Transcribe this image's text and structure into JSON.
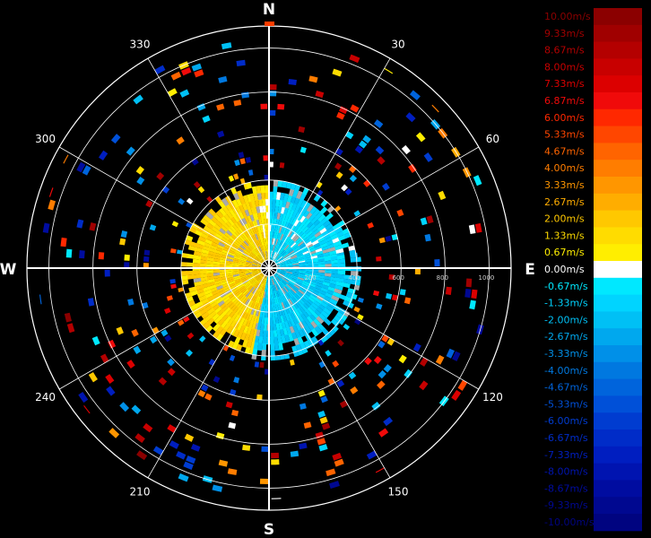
{
  "chart_data": {
    "type": "heatmap",
    "projection": "polar",
    "cardinal_labels": {
      "N": "N",
      "E": "E",
      "S": "S",
      "W": "W"
    },
    "azimuth_labels": [
      "30",
      "60",
      "120",
      "150",
      "210",
      "240",
      "300",
      "330"
    ],
    "azimuth_angles": [
      30,
      60,
      120,
      150,
      210,
      240,
      300,
      330
    ],
    "range_ring_labels": [
      "200",
      "400",
      "600",
      "800",
      "1000"
    ],
    "range_max": 1100,
    "grid": true,
    "colorbar": {
      "placement": "right",
      "entries": [
        {
          "label": "10.00m/s",
          "value": 10.0,
          "color": "#8b0000"
        },
        {
          "label": "9.33m/s",
          "value": 9.33,
          "color": "#a00000"
        },
        {
          "label": "8.67m/s",
          "value": 8.67,
          "color": "#b40000"
        },
        {
          "label": "8.00m/s",
          "value": 8.0,
          "color": "#c80000"
        },
        {
          "label": "7.33m/s",
          "value": 7.33,
          "color": "#dc0000"
        },
        {
          "label": "6.87m/s",
          "value": 6.87,
          "color": "#f00a0a"
        },
        {
          "label": "6.00m/s",
          "value": 6.0,
          "color": "#ff2800"
        },
        {
          "label": "5.33m/s",
          "value": 5.33,
          "color": "#ff4600"
        },
        {
          "label": "4.67m/s",
          "value": 4.67,
          "color": "#ff6400"
        },
        {
          "label": "4.00m/s",
          "value": 4.0,
          "color": "#ff7d00"
        },
        {
          "label": "3.33m/s",
          "value": 3.33,
          "color": "#ff9600"
        },
        {
          "label": "2.67m/s",
          "value": 2.67,
          "color": "#ffad00"
        },
        {
          "label": "2.00m/s",
          "value": 2.0,
          "color": "#ffc800"
        },
        {
          "label": "1.33m/s",
          "value": 1.33,
          "color": "#ffdc00"
        },
        {
          "label": "0.67m/s",
          "value": 0.67,
          "color": "#ffee00"
        },
        {
          "label": "0.00m/s",
          "value": 0.0,
          "color": "#ffffff"
        },
        {
          "label": "-0.67m/s",
          "value": -0.67,
          "color": "#00e8ff"
        },
        {
          "label": "-1.33m/s",
          "value": -1.33,
          "color": "#00d4ff"
        },
        {
          "label": "-2.00m/s",
          "value": -2.0,
          "color": "#00c0f5"
        },
        {
          "label": "-2.67m/s",
          "value": -2.67,
          "color": "#00a8ee"
        },
        {
          "label": "-3.33m/s",
          "value": -3.33,
          "color": "#0090e8"
        },
        {
          "label": "-4.00m/s",
          "value": -4.0,
          "color": "#0078e0"
        },
        {
          "label": "-4.67m/s",
          "value": -4.67,
          "color": "#0064dc"
        },
        {
          "label": "-5.33m/s",
          "value": -5.33,
          "color": "#0050d8"
        },
        {
          "label": "-6.00m/s",
          "value": -6.0,
          "color": "#003cd0"
        },
        {
          "label": "-6.67m/s",
          "value": -6.67,
          "color": "#002cc8"
        },
        {
          "label": "-7.33m/s",
          "value": -7.33,
          "color": "#001ec0"
        },
        {
          "label": "-8.00m/s",
          "value": -8.0,
          "color": "#0014b0"
        },
        {
          "label": "-8.67m/s",
          "value": -8.67,
          "color": "#000ca0"
        },
        {
          "label": "-9.33m/s",
          "value": -9.33,
          "color": "#000890"
        },
        {
          "label": "-10.00m/s",
          "value": -10.0,
          "color": "#000480"
        }
      ]
    },
    "regions": [
      {
        "range": [
          20,
          400
        ],
        "azimuth": [
          190,
          345
        ],
        "dominant_value": 1.5
      },
      {
        "range": [
          20,
          400
        ],
        "azimuth": [
          345,
          360
        ],
        "dominant_value": 1.0
      },
      {
        "range": [
          20,
          400
        ],
        "azimuth": [
          0,
          80
        ],
        "dominant_value": -1.0
      },
      {
        "range": [
          20,
          420
        ],
        "azimuth": [
          80,
          190
        ],
        "dominant_value": -1.5
      },
      {
        "range": [
          400,
          1050
        ],
        "azimuth": [
          0,
          360
        ],
        "dominant_value": null,
        "coverage": "sparse"
      }
    ]
  },
  "colors": {
    "background": "#000000",
    "grid": "#ffffff",
    "north_marker": "#ff3c00",
    "no_data_gray": "#a9a9a9"
  }
}
